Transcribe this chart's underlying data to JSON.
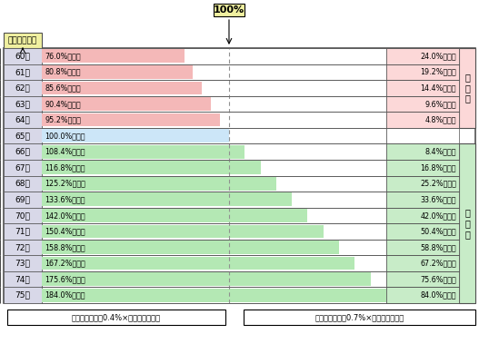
{
  "ages": [
    "60歳",
    "61歳",
    "62歳",
    "63歳",
    "64歳",
    "65歳",
    "66歳",
    "67歳",
    "68歳",
    "69歳",
    "70歳",
    "71歳",
    "72歳",
    "73歳",
    "74歳",
    "75歳"
  ],
  "percentages": [
    76.0,
    80.8,
    85.6,
    90.4,
    95.2,
    100.0,
    108.4,
    116.8,
    125.2,
    133.6,
    142.0,
    150.4,
    158.8,
    167.2,
    175.6,
    184.0
  ],
  "bar_labels": [
    "76.0%の支給",
    "80.8%の支給",
    "85.6%の支給",
    "90.4%の支給",
    "95.2%の支給",
    "100.0%の支給",
    "108.4%の支給",
    "116.8%の支給",
    "125.2%の支給",
    "133.6%の支給",
    "142.0%の支給",
    "150.4%の支給",
    "158.8%の支給",
    "167.2%の支給",
    "175.6%の支給",
    "184.0%の支給"
  ],
  "right_labels": [
    "24.0%の減額",
    "19.2%の減額",
    "14.4%の減額",
    "9.6%の減額",
    "4.8%の減額",
    "",
    "8.4%の増額",
    "16.8%の増額",
    "25.2%の増額",
    "33.6%の増額",
    "42.0%の増額",
    "50.4%の増額",
    "58.8%の増額",
    "67.2%の増額",
    "75.6%の増額",
    "84.0%の増額"
  ],
  "bar_color_early": "#f4b8b8",
  "bar_color_65": "#cce6f8",
  "bar_color_late": "#b4e8b4",
  "right_bg_early": "#fcd8d8",
  "right_bg_late": "#c8ecc8",
  "age_col_color": "#d8d8e8",
  "header_box_color": "#f0f0a0",
  "outer_border": "#505050",
  "dashed_color": "#909090",
  "caption_left": "繰上げ減額率＝0.4%×繰り上げる月数",
  "caption_right": "繰下げ増額率＝0.7%×繰り下げる月数",
  "header_age": "受給開始年齢",
  "header_100": "100%",
  "side_early": "繰\n上\nげ",
  "side_late": "繰\n下\nげ",
  "max_pct": 184.0,
  "scale_factor": 1.12
}
